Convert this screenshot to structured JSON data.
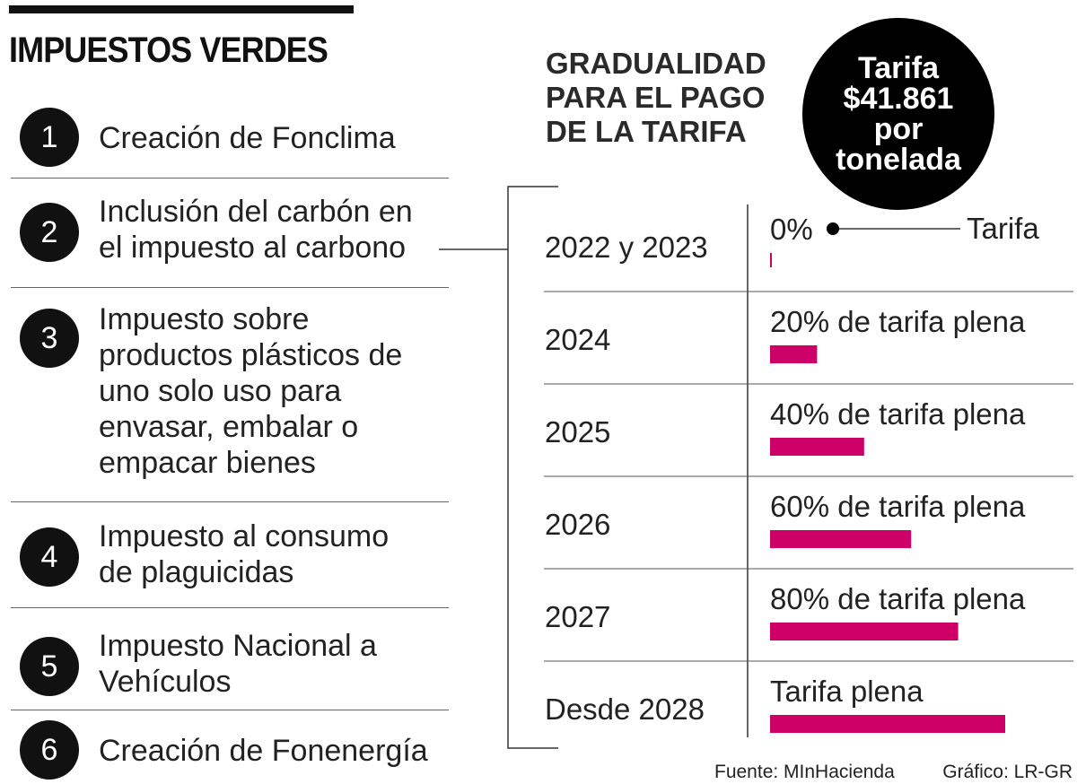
{
  "title": "IMPUESTOS VERDES",
  "items": [
    {
      "num": "1",
      "lines": [
        "Creación de Fonclima"
      ]
    },
    {
      "num": "2",
      "lines": [
        "Inclusión del carbón en",
        "el impuesto al carbono"
      ]
    },
    {
      "num": "3",
      "lines": [
        "Impuesto sobre",
        "productos plásticos de",
        "uno solo uso para",
        "envasar, embalar o",
        "empacar bienes"
      ]
    },
    {
      "num": "4",
      "lines": [
        "Impuesto al consumo",
        "de plaguicidas"
      ]
    },
    {
      "num": "5",
      "lines": [
        "Impuesto Nacional a",
        "Vehículos"
      ]
    },
    {
      "num": "6",
      "lines": [
        "Creación de Fonenergía"
      ]
    }
  ],
  "chart_data": {
    "type": "bar",
    "orientation": "horizontal",
    "title": "GRADUALIDAD\nPARA EL PAGO\nDE LA TARIFA",
    "badge": [
      "Tarifa",
      "$41.861",
      "por",
      "tonelada"
    ],
    "categories": [
      "2022 y 2023",
      "2024",
      "2025",
      "2026",
      "2027",
      "Desde 2028"
    ],
    "values": [
      0,
      20,
      40,
      60,
      80,
      100
    ],
    "value_labels": [
      "0%",
      "20% de tarifa plena",
      "40% de tarifa plena",
      "60% de tarifa plena",
      "80% de tarifa plena",
      "Tarifa plena"
    ],
    "xlim": [
      0,
      100
    ],
    "annotation": "Tarifa",
    "bar_color": "#cc0066"
  },
  "footer": {
    "source": "Fuente: MInHacienda",
    "credit": "Gráfico: LR-GR"
  }
}
